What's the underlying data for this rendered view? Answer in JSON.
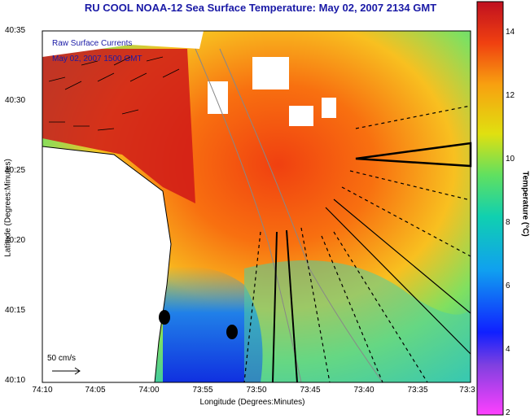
{
  "title": "RU COOL  NOAA-12  Sea Surface Temperature:  May 02, 2007 2134 GMT",
  "legend": {
    "raw_currents": "Raw Surface Currents",
    "date": "May 02, 2007 1500 GMT"
  },
  "axes": {
    "x_title": "Longitude (Degrees:Minutes)",
    "y_title": "Latitude (Degrees:Minutes)",
    "x_ticks": [
      "74:10",
      "74:05",
      "74:00",
      "73:55",
      "73:50",
      "73:45",
      "73:40",
      "73:35",
      "73:3"
    ],
    "y_ticks": [
      "40:35",
      "40:30",
      "40:25",
      "40:20",
      "40:15",
      "40:10"
    ]
  },
  "colorbar": {
    "title": "Temperature (°C)",
    "ticks": [
      "14",
      "12",
      "10",
      "8",
      "6",
      "4",
      "2"
    ],
    "range": [
      2,
      15
    ]
  },
  "scale": {
    "label": "50 cm/s"
  },
  "colors": {
    "title": "#1a1aa6",
    "land": "#ffffff",
    "warm": "#e01010",
    "mid": "#f8c020",
    "cool": "#10b8b0",
    "cold": "#1040e0"
  }
}
